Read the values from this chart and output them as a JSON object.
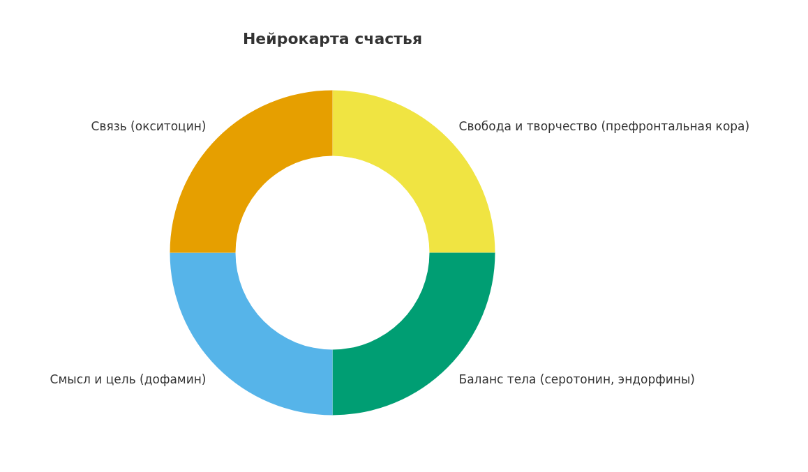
{
  "chart_data": {
    "type": "donut",
    "title": "Нейрокарта счастья",
    "categories": [
      "Свобода и творчество (префронтальная кора)",
      "Баланс тела (серотонин, эндорфины)",
      "Смысл и цель (дофамин)",
      "Связь (окситоцин)"
    ],
    "values": [
      25,
      25,
      25,
      25
    ],
    "colors": [
      "#f0e442",
      "#009e73",
      "#56b4e9",
      "#e69f00"
    ]
  }
}
